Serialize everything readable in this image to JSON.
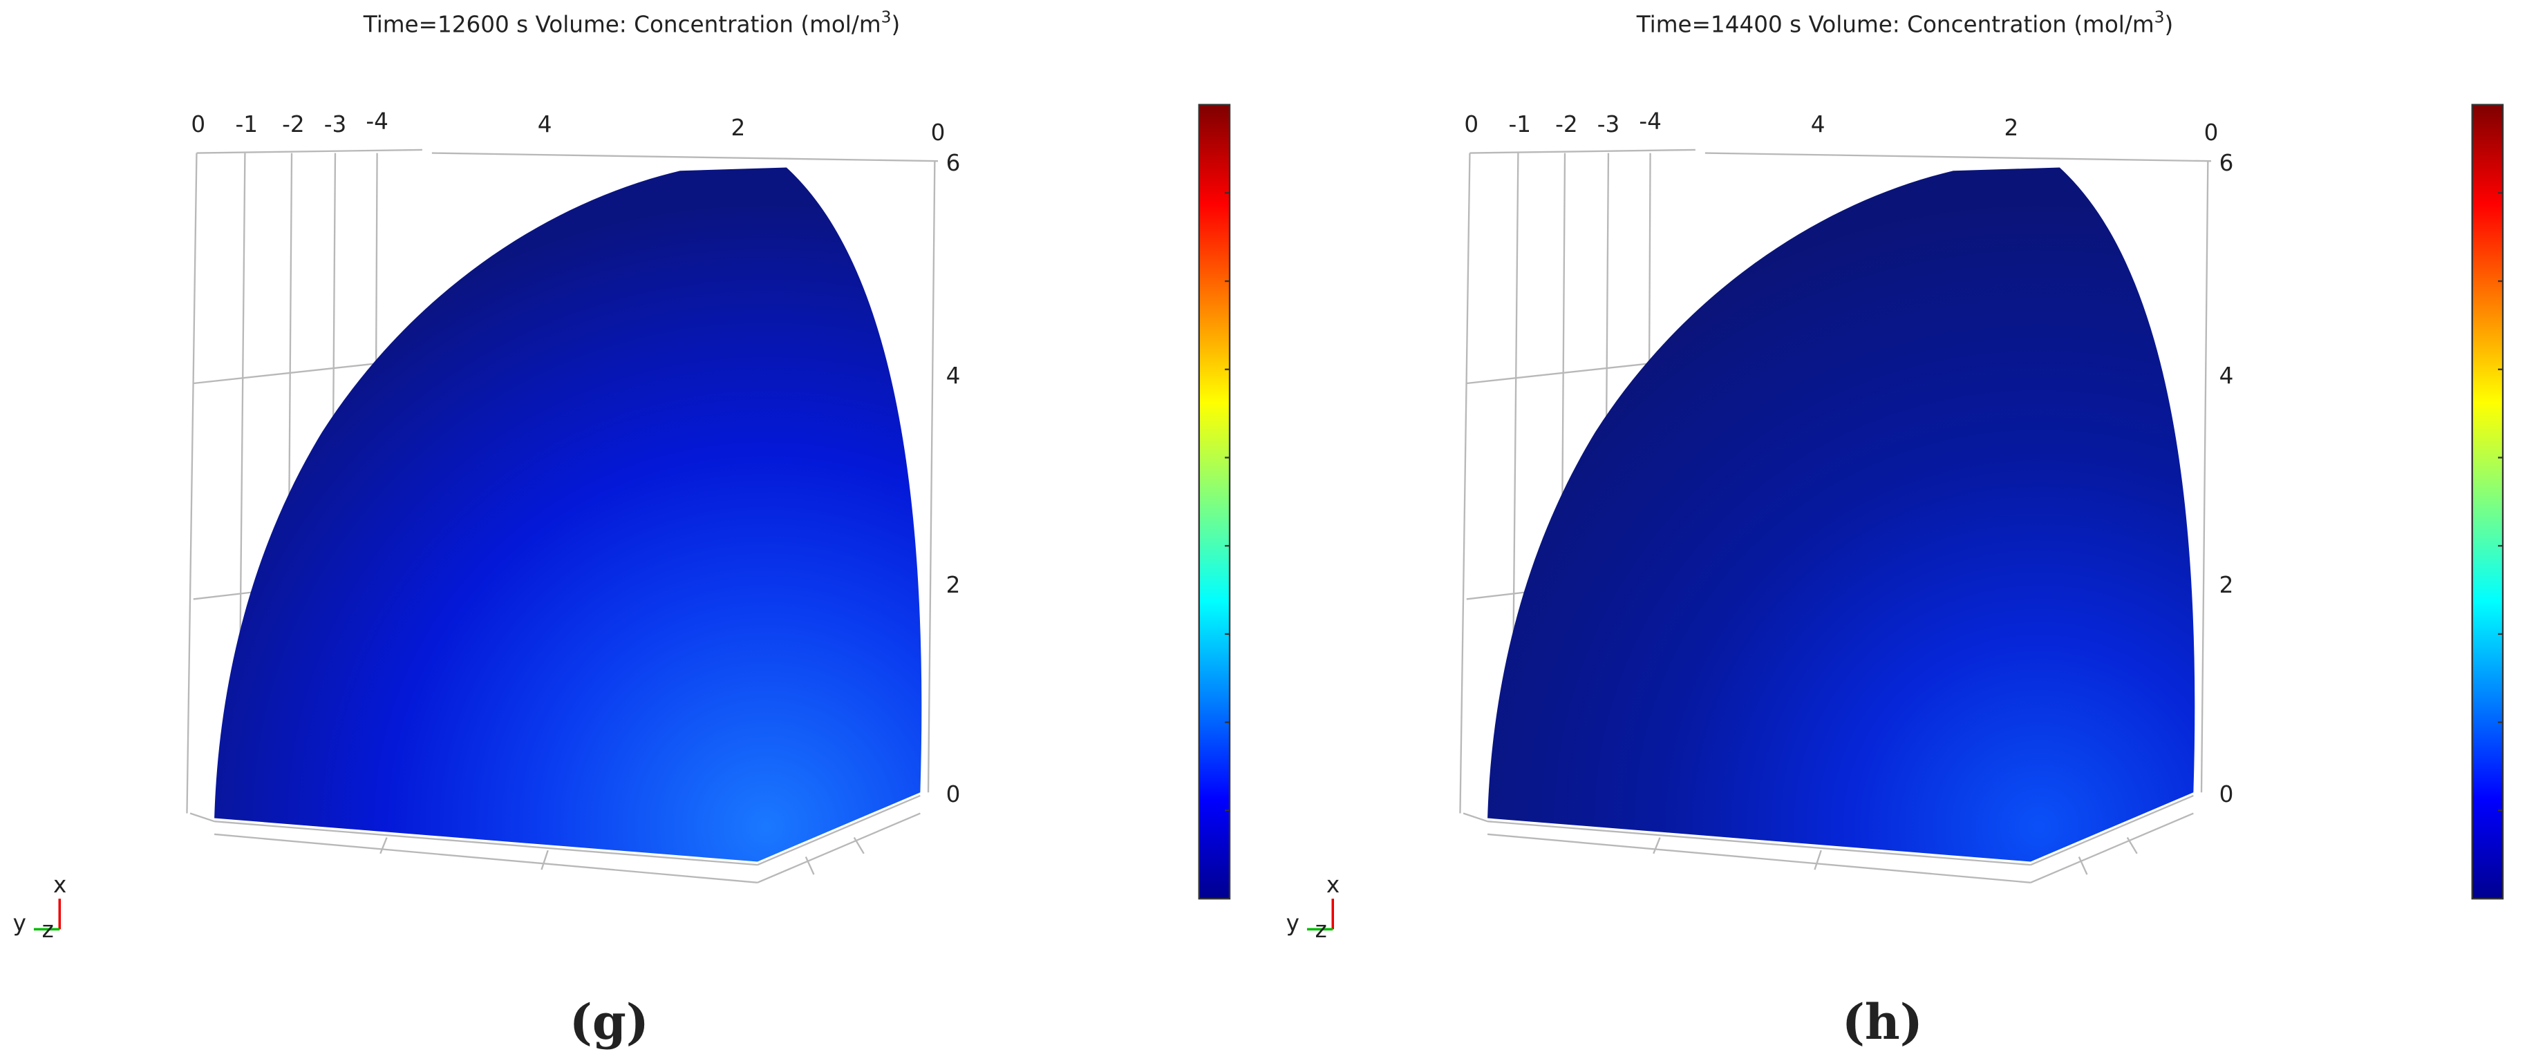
{
  "panels": [
    {
      "title": "Time=12600 s   Volume: Concentration (mol/m",
      "title_sup": "3",
      "title_end": ")",
      "top_ticks": [
        "0",
        "-1",
        "-2",
        "-3",
        "-4",
        "4",
        "2",
        "0"
      ],
      "right_ticks": [
        "6",
        "4",
        "2",
        "0"
      ],
      "triad": [
        "x",
        "y",
        "z"
      ],
      "caption": "(g)"
    },
    {
      "title": "Time=14400 s   Volume: Concentration (mol/m",
      "title_sup": "3",
      "title_end": ")",
      "top_ticks": [
        "0",
        "-1",
        "-2",
        "-3",
        "-4",
        "4",
        "2",
        "0"
      ],
      "right_ticks": [
        "6",
        "4",
        "2",
        "0"
      ],
      "triad": [
        "x",
        "y",
        "z"
      ],
      "caption": "(h)"
    }
  ]
}
